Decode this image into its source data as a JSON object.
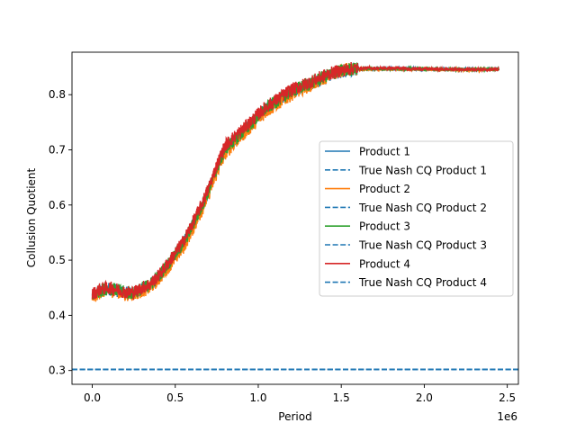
{
  "chart_data": {
    "type": "line",
    "title": "",
    "xlabel": "Period",
    "ylabel": "Collusion Quotient",
    "x_offset_label": "1e6",
    "xlim": [
      -0.122,
      2.567
    ],
    "ylim": [
      0.275,
      0.877
    ],
    "x_ticks": [
      0.0,
      0.5,
      1.0,
      1.5,
      2.0,
      2.5
    ],
    "x_tick_labels": [
      "0.0",
      "0.5",
      "1.0",
      "1.5",
      "2.0",
      "2.5"
    ],
    "y_ticks": [
      0.3,
      0.4,
      0.5,
      0.6,
      0.7,
      0.8
    ],
    "y_tick_labels": [
      "0.3",
      "0.4",
      "0.5",
      "0.6",
      "0.7",
      "0.8"
    ],
    "grid": false,
    "legend_position": "center-right",
    "nash_cq": 0.302,
    "series": [
      {
        "name": "Product 1",
        "color": "#1f77b4",
        "style": "solid",
        "x": [
          0,
          0.05,
          0.1,
          0.15,
          0.2,
          0.25,
          0.3,
          0.35,
          0.4,
          0.45,
          0.5,
          0.55,
          0.6,
          0.65,
          0.7,
          0.75,
          0.8,
          0.85,
          0.9,
          0.95,
          1.0,
          1.05,
          1.1,
          1.15,
          1.2,
          1.25,
          1.3,
          1.35,
          1.4,
          1.45,
          1.5,
          1.55,
          1.6,
          1.7,
          1.8,
          1.9,
          2.0,
          2.1,
          2.2,
          2.3,
          2.45
        ],
        "y": [
          0.435,
          0.445,
          0.448,
          0.445,
          0.44,
          0.44,
          0.448,
          0.455,
          0.47,
          0.49,
          0.51,
          0.53,
          0.56,
          0.59,
          0.625,
          0.665,
          0.7,
          0.715,
          0.73,
          0.745,
          0.76,
          0.775,
          0.785,
          0.795,
          0.805,
          0.812,
          0.818,
          0.825,
          0.832,
          0.838,
          0.842,
          0.845,
          0.846,
          0.847,
          0.847,
          0.847,
          0.846,
          0.846,
          0.846,
          0.846,
          0.846
        ]
      },
      {
        "name": "True Nash CQ Product 1",
        "color": "#1f77b4",
        "style": "dashed"
      },
      {
        "name": "Product 2",
        "color": "#ff7f0e",
        "style": "solid",
        "x": [
          0,
          0.05,
          0.1,
          0.15,
          0.2,
          0.25,
          0.3,
          0.35,
          0.4,
          0.45,
          0.5,
          0.55,
          0.6,
          0.65,
          0.7,
          0.75,
          0.8,
          0.85,
          0.9,
          0.95,
          1.0,
          1.05,
          1.1,
          1.15,
          1.2,
          1.25,
          1.3,
          1.35,
          1.4,
          1.45,
          1.5,
          1.55,
          1.6,
          1.7,
          1.8,
          1.9,
          2.0,
          2.1,
          2.2,
          2.3,
          2.45
        ],
        "y": [
          0.432,
          0.442,
          0.446,
          0.443,
          0.438,
          0.438,
          0.444,
          0.45,
          0.465,
          0.484,
          0.503,
          0.523,
          0.553,
          0.583,
          0.618,
          0.658,
          0.693,
          0.71,
          0.725,
          0.74,
          0.755,
          0.77,
          0.78,
          0.79,
          0.8,
          0.808,
          0.815,
          0.822,
          0.83,
          0.838,
          0.844,
          0.846,
          0.846,
          0.846,
          0.846,
          0.846,
          0.846,
          0.845,
          0.845,
          0.845,
          0.845
        ]
      },
      {
        "name": "True Nash CQ Product 2",
        "color": "#1f77b4",
        "style": "dashed"
      },
      {
        "name": "Product 3",
        "color": "#2ca02c",
        "style": "solid",
        "x": [
          0,
          0.05,
          0.1,
          0.15,
          0.2,
          0.25,
          0.3,
          0.35,
          0.4,
          0.45,
          0.5,
          0.55,
          0.6,
          0.65,
          0.7,
          0.75,
          0.8,
          0.85,
          0.9,
          0.95,
          1.0,
          1.05,
          1.1,
          1.15,
          1.2,
          1.25,
          1.3,
          1.35,
          1.4,
          1.45,
          1.5,
          1.55,
          1.6,
          1.7,
          1.8,
          1.9,
          2.0,
          2.1,
          2.2,
          2.3,
          2.45
        ],
        "y": [
          0.436,
          0.446,
          0.449,
          0.446,
          0.441,
          0.441,
          0.449,
          0.456,
          0.471,
          0.491,
          0.511,
          0.531,
          0.561,
          0.591,
          0.626,
          0.666,
          0.701,
          0.716,
          0.731,
          0.746,
          0.761,
          0.776,
          0.786,
          0.796,
          0.806,
          0.813,
          0.819,
          0.826,
          0.833,
          0.839,
          0.843,
          0.846,
          0.847,
          0.847,
          0.847,
          0.847,
          0.847,
          0.846,
          0.846,
          0.846,
          0.846
        ]
      },
      {
        "name": "True Nash CQ Product 3",
        "color": "#1f77b4",
        "style": "dashed"
      },
      {
        "name": "Product 4",
        "color": "#d62728",
        "style": "solid",
        "x": [
          0,
          0.05,
          0.1,
          0.15,
          0.2,
          0.25,
          0.3,
          0.35,
          0.4,
          0.45,
          0.5,
          0.55,
          0.6,
          0.65,
          0.7,
          0.75,
          0.8,
          0.85,
          0.9,
          0.95,
          1.0,
          1.05,
          1.1,
          1.15,
          1.2,
          1.25,
          1.3,
          1.35,
          1.4,
          1.45,
          1.5,
          1.55,
          1.6,
          1.7,
          1.8,
          1.9,
          2.0,
          2.1,
          2.2,
          2.3,
          2.45
        ],
        "y": [
          0.438,
          0.448,
          0.45,
          0.447,
          0.442,
          0.442,
          0.45,
          0.457,
          0.472,
          0.492,
          0.513,
          0.535,
          0.565,
          0.595,
          0.63,
          0.672,
          0.708,
          0.722,
          0.736,
          0.75,
          0.765,
          0.778,
          0.789,
          0.799,
          0.809,
          0.815,
          0.821,
          0.828,
          0.835,
          0.84,
          0.844,
          0.847,
          0.848,
          0.848,
          0.848,
          0.847,
          0.847,
          0.846,
          0.846,
          0.846,
          0.846
        ]
      },
      {
        "name": "True Nash CQ Product 4",
        "color": "#1f77b4",
        "style": "dashed"
      }
    ]
  }
}
